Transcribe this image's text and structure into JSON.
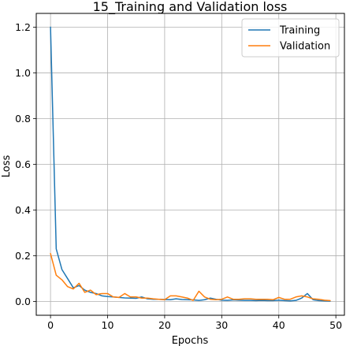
{
  "chart_data": {
    "type": "line",
    "title": "15_Training and Validation loss",
    "xlabel": "Epochs",
    "ylabel": "Loss",
    "xlim": [
      -2.5,
      51.5
    ],
    "ylim": [
      -0.06,
      1.26
    ],
    "xticks": [
      0,
      10,
      20,
      30,
      40,
      50
    ],
    "yticks": [
      0.0,
      0.2,
      0.4,
      0.6,
      0.8,
      1.0,
      1.2
    ],
    "xtick_labels": [
      "0",
      "10",
      "20",
      "30",
      "40",
      "50"
    ],
    "ytick_labels": [
      "0.0",
      "0.2",
      "0.4",
      "0.6",
      "0.8",
      "1.0",
      "1.2"
    ],
    "grid": true,
    "legend_position": "top-right",
    "series": [
      {
        "name": "Training",
        "color": "#1f77b4",
        "x": [
          0,
          1,
          2,
          3,
          4,
          5,
          6,
          7,
          8,
          9,
          10,
          11,
          12,
          13,
          14,
          15,
          16,
          17,
          18,
          19,
          20,
          21,
          22,
          23,
          24,
          25,
          26,
          27,
          28,
          29,
          30,
          31,
          32,
          33,
          34,
          35,
          36,
          37,
          38,
          39,
          40,
          41,
          42,
          43,
          44,
          45,
          46,
          47,
          48,
          49
        ],
        "values": [
          1.2,
          0.23,
          0.14,
          0.1,
          0.06,
          0.07,
          0.05,
          0.04,
          0.035,
          0.025,
          0.022,
          0.02,
          0.018,
          0.016,
          0.015,
          0.014,
          0.02,
          0.012,
          0.01,
          0.01,
          0.009,
          0.008,
          0.012,
          0.009,
          0.008,
          0.007,
          0.005,
          0.008,
          0.015,
          0.01,
          0.006,
          0.005,
          0.007,
          0.006,
          0.005,
          0.005,
          0.004,
          0.005,
          0.004,
          0.004,
          0.006,
          0.004,
          0.003,
          0.005,
          0.015,
          0.035,
          0.008,
          0.004,
          0.003,
          0.002
        ]
      },
      {
        "name": "Validation",
        "color": "#ff7f0e",
        "x": [
          0,
          1,
          2,
          3,
          4,
          5,
          6,
          7,
          8,
          9,
          10,
          11,
          12,
          13,
          14,
          15,
          16,
          17,
          18,
          19,
          20,
          21,
          22,
          23,
          24,
          25,
          26,
          27,
          28,
          29,
          30,
          31,
          32,
          33,
          34,
          35,
          36,
          37,
          38,
          39,
          40,
          41,
          42,
          43,
          44,
          45,
          46,
          47,
          48,
          49
        ],
        "values": [
          0.21,
          0.115,
          0.095,
          0.065,
          0.055,
          0.08,
          0.04,
          0.05,
          0.03,
          0.035,
          0.035,
          0.02,
          0.018,
          0.035,
          0.02,
          0.02,
          0.015,
          0.015,
          0.012,
          0.01,
          0.008,
          0.025,
          0.025,
          0.02,
          0.015,
          0.005,
          0.045,
          0.02,
          0.01,
          0.008,
          0.01,
          0.02,
          0.01,
          0.01,
          0.012,
          0.012,
          0.01,
          0.01,
          0.01,
          0.008,
          0.018,
          0.01,
          0.01,
          0.02,
          0.025,
          0.02,
          0.012,
          0.01,
          0.006,
          0.004
        ]
      }
    ]
  }
}
